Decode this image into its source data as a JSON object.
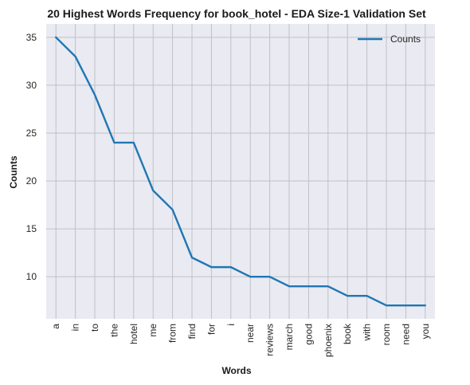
{
  "chart_data": {
    "type": "line",
    "title": "20 Highest Words Frequency for book_hotel - EDA Size-1 Validation Set",
    "xlabel": "Words",
    "ylabel": "Counts",
    "categories": [
      "a",
      "in",
      "to",
      "the",
      "hotel",
      "me",
      "from",
      "find",
      "for",
      "i",
      "near",
      "reviews",
      "march",
      "good",
      "phoenix",
      "book",
      "with",
      "room",
      "need",
      "you"
    ],
    "series": [
      {
        "name": "Counts",
        "values": [
          35,
          33,
          29,
          24,
          24,
          19,
          17,
          12,
          11,
          11,
          10,
          10,
          9,
          9,
          9,
          8,
          8,
          7,
          7,
          7
        ],
        "color": "#1f77b4"
      }
    ],
    "ylim": [
      5.6,
      36.4
    ],
    "yticks": [
      10,
      15,
      20,
      25,
      30,
      35
    ],
    "grid": true,
    "legend": "top-right",
    "background": "#eaeaf2",
    "grid_color": "#c0c0c6"
  }
}
